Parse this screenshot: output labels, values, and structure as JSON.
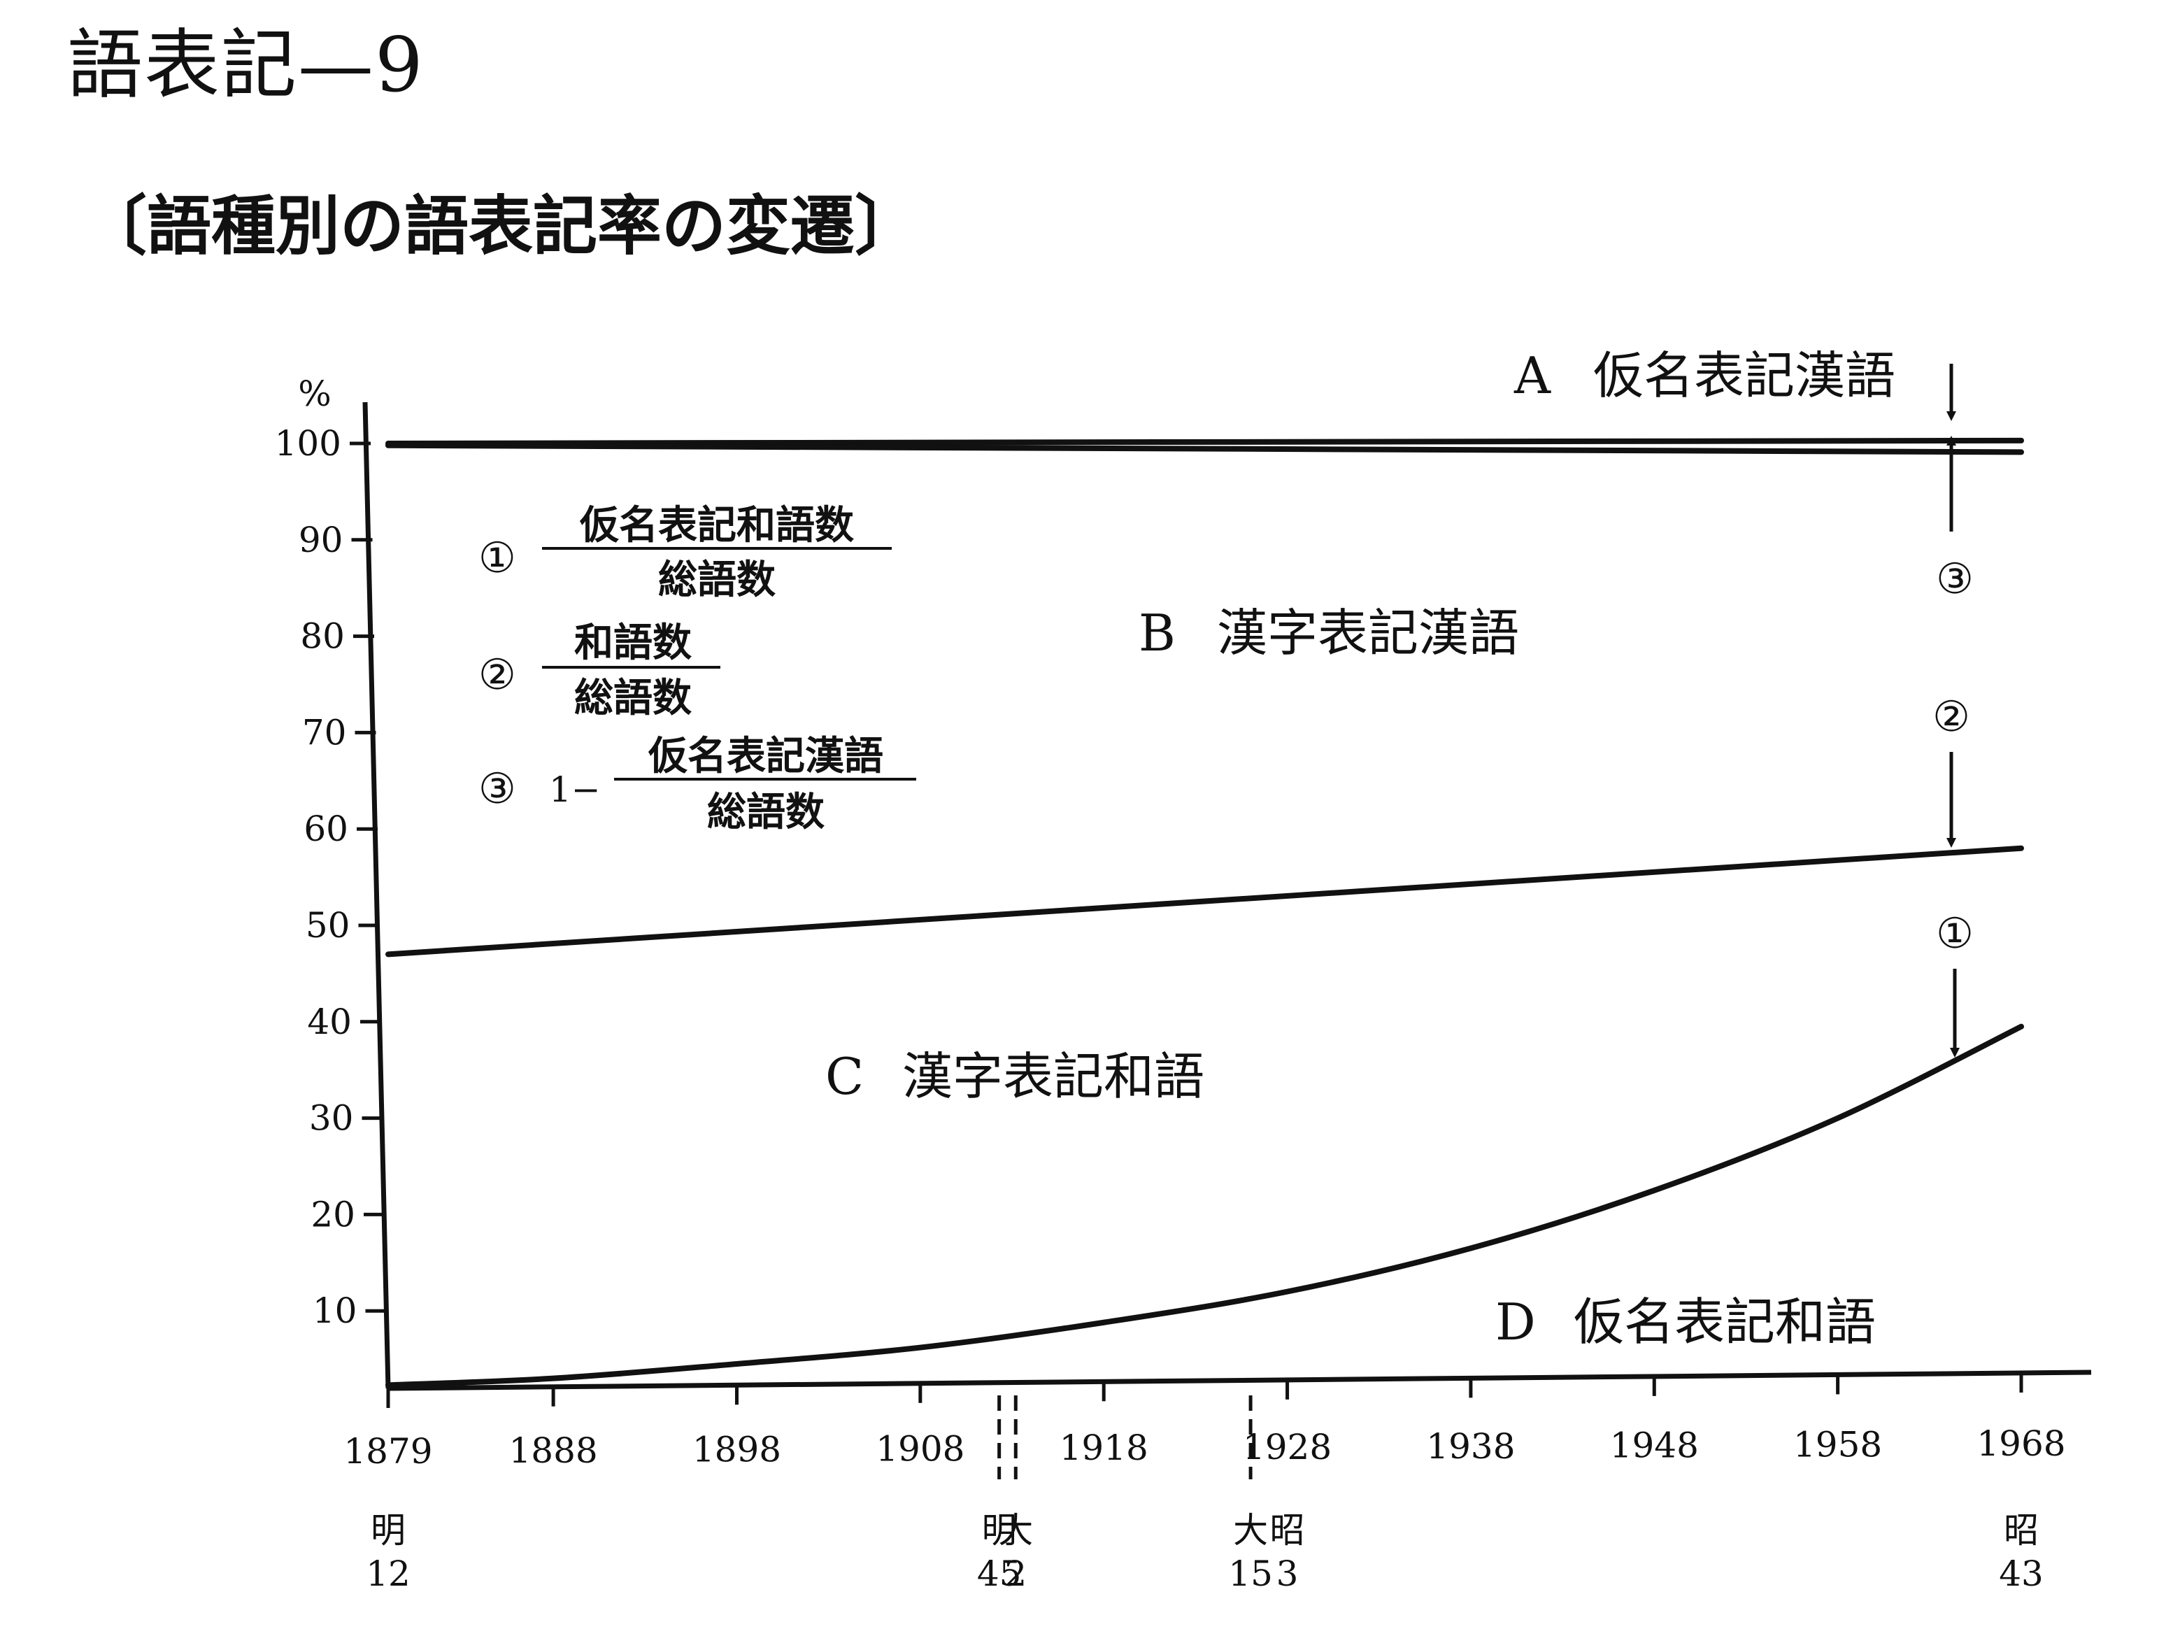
{
  "page_title": "語表記—9",
  "chart_data": {
    "type": "area",
    "title": "〔語種別の語表記率の変遷〕",
    "ylabel": "%",
    "xlabel": "",
    "ylim": [
      0,
      100
    ],
    "xlim": [
      1879,
      1968
    ],
    "y_ticks": [
      "10",
      "20",
      "30",
      "40",
      "50",
      "60",
      "70",
      "80",
      "90",
      "100"
    ],
    "x_ticks": [
      "1879",
      "1888",
      "1898",
      "1908",
      "1918",
      "1928",
      "1938",
      "1948",
      "1958",
      "1968"
    ],
    "era_labels": [
      {
        "year": 1879,
        "lines": [
          "明",
          "12"
        ],
        "dashed": false
      },
      {
        "year": 1912.3,
        "lines": [
          "明",
          "45"
        ],
        "dashed": true
      },
      {
        "year": 1913.2,
        "lines": [
          "大",
          "2"
        ],
        "dashed": true
      },
      {
        "year": 1926,
        "lines": [
          "大",
          "15"
        ],
        "dashed": true
      },
      {
        "year": 1928,
        "lines": [
          "昭",
          "3"
        ],
        "dashed": false
      },
      {
        "year": 1968,
        "lines": [
          "昭",
          "43"
        ],
        "dashed": false
      }
    ],
    "series": [
      {
        "x": [
          1879,
          1968
        ],
        "values": [
          100,
          100.3
        ]
      },
      {
        "x": [
          1879,
          1968
        ],
        "values": [
          99.8,
          99.1
        ]
      },
      {
        "x": [
          1879,
          1968
        ],
        "values": [
          47,
          58
        ]
      },
      {
        "x": [
          1879,
          1888,
          1898,
          1908,
          1918,
          1928,
          1938,
          1948,
          1958,
          1968
        ],
        "values": [
          2.3,
          3,
          4.5,
          6.2,
          8.8,
          12,
          16.5,
          22.5,
          30,
          39.5
        ]
      }
    ],
    "regions": [
      {
        "letter": "A",
        "label": "仮名表記漢語"
      },
      {
        "letter": "B",
        "label": "漢字表記漢語"
      },
      {
        "letter": "C",
        "label": "漢字表記和語"
      },
      {
        "letter": "D",
        "label": "仮名表記和語"
      }
    ],
    "formulas": [
      {
        "marker": "①",
        "prefix": "",
        "numerator": "仮名表記和語数",
        "denominator": "総語数"
      },
      {
        "marker": "②",
        "prefix": "",
        "numerator": "和語数",
        "denominator": "総語数"
      },
      {
        "marker": "③",
        "prefix": "1−",
        "numerator": "仮名表記漢語",
        "denominator": "総語数"
      }
    ],
    "arrow_markers": [
      "①",
      "②",
      "③"
    ]
  }
}
